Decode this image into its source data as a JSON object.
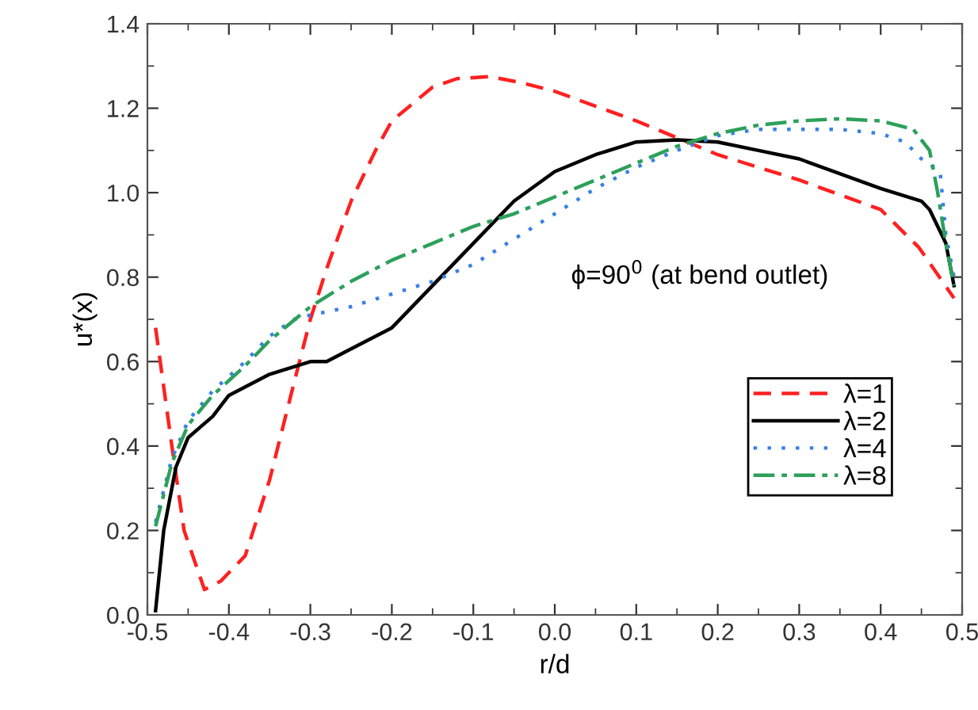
{
  "chart_data": {
    "type": "line",
    "xlabel": "r/d",
    "ylabel": "u*(x)",
    "xlim": [
      -0.5,
      0.5
    ],
    "xticks": [
      {
        "value": -0.5,
        "label": "-0.5"
      },
      {
        "value": -0.4,
        "label": "-0.4"
      },
      {
        "value": -0.3,
        "label": "-0.3"
      },
      {
        "value": -0.2,
        "label": "-0.2"
      },
      {
        "value": -0.1,
        "label": "-0.1"
      },
      {
        "value": 0,
        "label": "0.0"
      },
      0.1,
      0.2,
      0.3,
      0.4,
      0.5
    ],
    "ylim": [
      0,
      1.4
    ],
    "yticks": [
      {
        "value": 0,
        "label": "0.0"
      },
      0.2,
      0.4,
      0.6,
      0.8,
      {
        "value": 1,
        "label": "1.0"
      },
      1.2,
      1.4
    ],
    "grid": false,
    "legend": "bottom right",
    "marker": "none",
    "annotations": [
      "ϕ=90$^{0}$ (at bend outlet)"
    ],
    "series": [
      {
        "name": "λ=1",
        "color": "#ff2020",
        "line_style": "dashed",
        "x": [
          -0.49,
          -0.47,
          -0.455,
          -0.43,
          -0.41,
          -0.38,
          -0.35,
          -0.32,
          -0.3,
          -0.28,
          -0.25,
          -0.22,
          -0.2,
          -0.15,
          -0.12,
          -0.08,
          -0.04,
          0.0,
          0.1,
          0.2,
          0.3,
          0.4,
          0.447,
          0.49
        ],
        "values": [
          0.68,
          0.4,
          0.2,
          0.06,
          0.08,
          0.14,
          0.32,
          0.55,
          0.7,
          0.82,
          0.98,
          1.1,
          1.17,
          1.25,
          1.27,
          1.275,
          1.26,
          1.24,
          1.17,
          1.09,
          1.03,
          0.96,
          0.87,
          0.75
        ]
      },
      {
        "name": "λ=2",
        "color": "#000000",
        "line_style": "solid",
        "x": [
          -0.49,
          -0.48,
          -0.465,
          -0.45,
          -0.42,
          -0.4,
          -0.35,
          -0.3,
          -0.28,
          -0.25,
          -0.2,
          -0.18,
          -0.15,
          -0.1,
          -0.05,
          0.0,
          0.05,
          0.1,
          0.15,
          0.2,
          0.25,
          0.3,
          0.4,
          0.45,
          0.46,
          0.48,
          0.49
        ],
        "values": [
          0.01,
          0.2,
          0.35,
          0.42,
          0.47,
          0.52,
          0.57,
          0.6,
          0.6,
          0.63,
          0.68,
          0.72,
          0.78,
          0.88,
          0.98,
          1.05,
          1.09,
          1.12,
          1.125,
          1.12,
          1.1,
          1.08,
          1.01,
          0.98,
          0.96,
          0.88,
          0.78
        ]
      },
      {
        "name": "λ=4",
        "color": "#3a7fe6",
        "line_style": "dotted",
        "x": [
          -0.49,
          -0.47,
          -0.45,
          -0.42,
          -0.38,
          -0.35,
          -0.32,
          -0.3,
          -0.25,
          -0.2,
          -0.15,
          -0.1,
          -0.05,
          0.0,
          0.05,
          0.1,
          0.15,
          0.2,
          0.25,
          0.3,
          0.35,
          0.4,
          0.43,
          0.45,
          0.473,
          0.48,
          0.49
        ],
        "values": [
          0.22,
          0.37,
          0.46,
          0.53,
          0.6,
          0.66,
          0.7,
          0.71,
          0.73,
          0.76,
          0.79,
          0.83,
          0.89,
          0.95,
          1.01,
          1.06,
          1.1,
          1.135,
          1.15,
          1.15,
          1.15,
          1.14,
          1.12,
          1.08,
          1.05,
          0.9,
          0.8
        ]
      },
      {
        "name": "λ=8",
        "color": "#2ca05a",
        "line_style": "dashdot",
        "x": [
          -0.49,
          -0.47,
          -0.45,
          -0.42,
          -0.38,
          -0.35,
          -0.3,
          -0.25,
          -0.2,
          -0.15,
          -0.1,
          -0.05,
          0.0,
          0.05,
          0.1,
          0.15,
          0.2,
          0.25,
          0.3,
          0.35,
          0.4,
          0.44,
          0.46,
          0.47,
          0.48,
          0.49
        ],
        "values": [
          0.21,
          0.36,
          0.45,
          0.52,
          0.59,
          0.65,
          0.73,
          0.79,
          0.84,
          0.88,
          0.92,
          0.95,
          0.99,
          1.03,
          1.07,
          1.11,
          1.14,
          1.16,
          1.17,
          1.175,
          1.17,
          1.15,
          1.1,
          1.0,
          0.88,
          0.78
        ]
      }
    ]
  }
}
